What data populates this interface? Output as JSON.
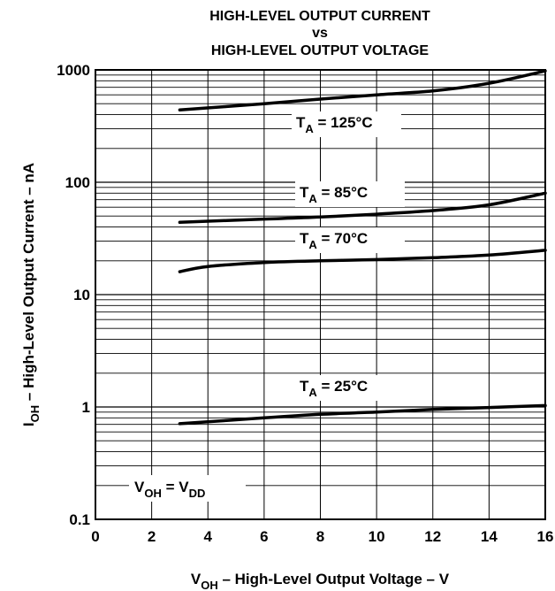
{
  "chart_data": {
    "type": "line",
    "title_lines": [
      "HIGH-LEVEL OUTPUT CURRENT",
      "vs",
      "HIGH-LEVEL OUTPUT VOLTAGE"
    ],
    "xlabel": {
      "symbol": "V",
      "sub": "OH",
      "text": " – High-Level Output Voltage – V"
    },
    "ylabel": {
      "symbol": "I",
      "sub": "OH",
      "text": "  – High-Level Output Current – nA"
    },
    "xlim": [
      0,
      16
    ],
    "ylim": [
      0.1,
      1000
    ],
    "y_scale": "log",
    "grid": true,
    "x_ticks": [
      0,
      2,
      4,
      6,
      8,
      10,
      12,
      14,
      16
    ],
    "y_ticks": [
      {
        "value": 0.1,
        "label": "0.1"
      },
      {
        "value": 1,
        "label": "1"
      },
      {
        "value": 10,
        "label": "10"
      },
      {
        "value": 100,
        "label": "100"
      },
      {
        "value": 1000,
        "label": "1000"
      }
    ],
    "series": [
      {
        "name": "TA = 125°C",
        "label": {
          "symbol": "T",
          "sub": "A",
          "text": " = 125°C"
        },
        "x": [
          3,
          6,
          8,
          10,
          12,
          14,
          16
        ],
        "y": [
          440,
          500,
          550,
          600,
          650,
          760,
          980
        ]
      },
      {
        "name": "TA = 85°C",
        "label": {
          "symbol": "T",
          "sub": "A",
          "text": " = 85°C"
        },
        "x": [
          3,
          6,
          8,
          10,
          12,
          14,
          16
        ],
        "y": [
          44,
          47,
          49,
          52,
          56,
          63,
          80
        ]
      },
      {
        "name": "TA = 70°C",
        "label": {
          "symbol": "T",
          "sub": "A",
          "text": " = 70°C"
        },
        "x": [
          3,
          4,
          6,
          8,
          10,
          12,
          14,
          16
        ],
        "y": [
          16,
          17.8,
          19.3,
          20,
          20.5,
          21.3,
          22.5,
          24.8
        ]
      },
      {
        "name": "TA = 25°C",
        "label": {
          "symbol": "T",
          "sub": "A",
          "text": " = 25°C"
        },
        "x": [
          3,
          6,
          8,
          10,
          12,
          14,
          16
        ],
        "y": [
          0.71,
          0.8,
          0.86,
          0.9,
          0.95,
          0.99,
          1.03
        ]
      }
    ],
    "annotations": [
      {
        "symbol": "V",
        "sub": "OH",
        "text": " = V",
        "sub2": "DD"
      }
    ]
  }
}
